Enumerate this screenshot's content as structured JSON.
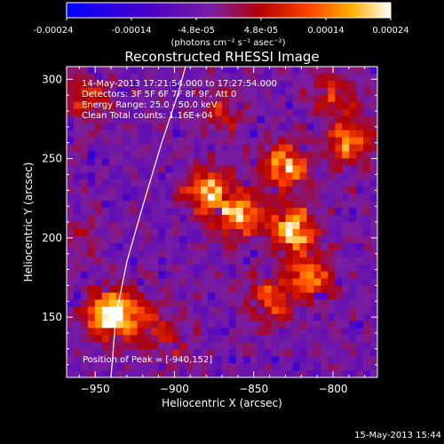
{
  "colorbar": {
    "ticks": [
      "-0.00024",
      "-0.00014",
      "-4.8e-05",
      "4.8e-05",
      "0.00014",
      "0.00024"
    ],
    "unit_label": "(photons cm⁻² s⁻¹ asec⁻²)",
    "colors": [
      "#0000ff",
      "#4a00c8",
      "#7a1ea0",
      "#b40000",
      "#ff4400",
      "#ffb000",
      "#ffffff"
    ]
  },
  "chart_data": {
    "type": "heatmap",
    "title": "Reconstructed RHESSI Image",
    "xlabel": "Heliocentric X (arcsec)",
    "ylabel": "Heliocentric Y (arcsec)",
    "xlim": [
      -968,
      -772
    ],
    "ylim": [
      112,
      308
    ],
    "xticks": [
      -950,
      -900,
      -850,
      -800
    ],
    "yticks": [
      150,
      200,
      250,
      300
    ],
    "annotations": [
      "14-May-2013 17:21:54.000 to 17:27:54.000",
      "Detectors: 3F 5F 6F 7F 8F 9F, Att 0",
      "Energy Range: 25.0 - 50.0 keV",
      "Clean    Total counts: 1.16E+04"
    ],
    "peak_label": "Position of Peak = [-940,152]",
    "limb_points": [
      [
        -940,
        112
      ],
      [
        -937,
        150
      ],
      [
        -930,
        185
      ],
      [
        -920,
        220
      ],
      [
        -908,
        260
      ],
      [
        -898,
        290
      ],
      [
        -893,
        308
      ]
    ],
    "hot_regions": [
      {
        "x": -940,
        "y": 152,
        "v": 1.0
      },
      {
        "x": -880,
        "y": 230,
        "v": 0.75
      },
      {
        "x": -860,
        "y": 215,
        "v": 0.8
      },
      {
        "x": -825,
        "y": 205,
        "v": 0.85
      },
      {
        "x": -815,
        "y": 175,
        "v": 0.7
      },
      {
        "x": -840,
        "y": 160,
        "v": 0.65
      },
      {
        "x": -830,
        "y": 245,
        "v": 0.8
      },
      {
        "x": -790,
        "y": 260,
        "v": 0.7
      },
      {
        "x": -800,
        "y": 290,
        "v": 0.6
      },
      {
        "x": -955,
        "y": 290,
        "v": 0.6
      },
      {
        "x": -920,
        "y": 150,
        "v": 0.55
      },
      {
        "x": -900,
        "y": 135,
        "v": 0.5
      },
      {
        "x": -870,
        "y": 280,
        "v": 0.55
      },
      {
        "x": -960,
        "y": 200,
        "v": 0.45
      }
    ]
  },
  "footer": {
    "timestamp": "15-May-2013 15:44"
  }
}
